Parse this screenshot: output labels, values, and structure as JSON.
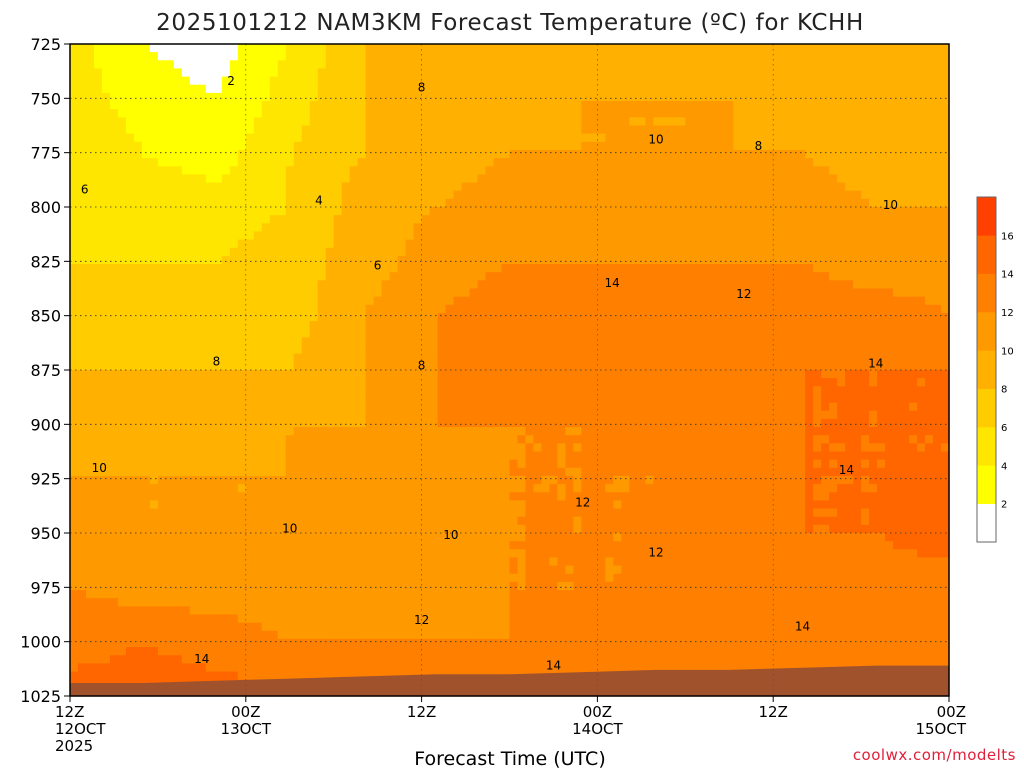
{
  "chart_data": {
    "type": "heatmap",
    "title": "2025101212 NAM3KM Forecast Temperature (ºC) for KCHH",
    "xlabel": "Forecast Time (UTC)",
    "ylabel": "",
    "credit": "coolwx.com/modelts",
    "y_ticks": [
      725,
      750,
      775,
      800,
      825,
      850,
      875,
      900,
      925,
      950,
      975,
      1000,
      1025
    ],
    "ylim": [
      725,
      1025
    ],
    "xlim_hours": [
      0,
      60
    ],
    "x_ticks": [
      {
        "hour": 0,
        "line1": "12Z",
        "line2": "12OCT",
        "line3": "2025"
      },
      {
        "hour": 12,
        "line1": "00Z",
        "line2": "13OCT",
        "line3": ""
      },
      {
        "hour": 24,
        "line1": "12Z",
        "line2": "",
        "line3": ""
      },
      {
        "hour": 36,
        "line1": "00Z",
        "line2": "14OCT",
        "line3": ""
      },
      {
        "hour": 48,
        "line1": "12Z",
        "line2": "",
        "line3": ""
      },
      {
        "hour": 60,
        "line1": "00Z",
        "line2": "15OCT",
        "line3": ""
      }
    ],
    "colorbar": {
      "ticks": [
        "2",
        "4",
        "6",
        "8",
        "10",
        "12",
        "14",
        "16"
      ],
      "levels": [
        0,
        2,
        4,
        6,
        8,
        10,
        12,
        14,
        16,
        18
      ],
      "colors": [
        "#ffffff",
        "#ffff00",
        "#ffe600",
        "#ffcc00",
        "#ffb000",
        "#ff9900",
        "#ff8000",
        "#ff6600",
        "#ff4000"
      ]
    },
    "ground_color": "#a0522d",
    "surface_pressure_hpa": [
      1019,
      1019,
      1018,
      1017,
      1016,
      1015,
      1015,
      1014,
      1013,
      1013,
      1012,
      1011,
      1011
    ],
    "surface_hours": [
      0,
      5,
      10,
      15,
      20,
      25,
      30,
      35,
      40,
      45,
      50,
      55,
      60
    ],
    "grid": true,
    "grid_pressures": [
      725,
      750,
      775,
      800,
      825,
      850,
      875,
      900,
      925,
      950,
      975,
      1000
    ],
    "temperature_grid": {
      "hours": [
        0,
        5,
        10,
        15,
        20,
        25,
        30,
        35,
        40,
        45,
        50,
        55,
        60
      ],
      "pressures": [
        725,
        750,
        775,
        800,
        825,
        850,
        875,
        900,
        925,
        950,
        975,
        1000,
        1025
      ],
      "values": [
        [
          5,
          2,
          1,
          4,
          8,
          8,
          8,
          9,
          9,
          9,
          8,
          9,
          9
        ],
        [
          5,
          3,
          2,
          5,
          8,
          9,
          9,
          10,
          10,
          10,
          9,
          9,
          9
        ],
        [
          6,
          4,
          3,
          6,
          8,
          9,
          10,
          10,
          10,
          10,
          10,
          9,
          9
        ],
        [
          6,
          5,
          5,
          6,
          9,
          10,
          11,
          11,
          11,
          11,
          11,
          10,
          10
        ],
        [
          6,
          6,
          6,
          7,
          9,
          11,
          12,
          12,
          12,
          12,
          12,
          11,
          11
        ],
        [
          7,
          7,
          7,
          7,
          10,
          12,
          13,
          14,
          12,
          13,
          13,
          13,
          12
        ],
        [
          8,
          8,
          8,
          8,
          10,
          12,
          13,
          13,
          12,
          13,
          14,
          14,
          14
        ],
        [
          9,
          9,
          9,
          10,
          10,
          12,
          12,
          12,
          13,
          13,
          14,
          14,
          14
        ],
        [
          10,
          10,
          10,
          10,
          11,
          11,
          12,
          12,
          12,
          13,
          14,
          14,
          14
        ],
        [
          11,
          10,
          10,
          10,
          10,
          11,
          12,
          12,
          12,
          13,
          14,
          14,
          15
        ],
        [
          12,
          11,
          11,
          11,
          11,
          11,
          12,
          12,
          12,
          13,
          13,
          13,
          13
        ],
        [
          13,
          14,
          13,
          12,
          12,
          12,
          12,
          13,
          13,
          13,
          13,
          13,
          13
        ],
        [
          15,
          15,
          15,
          14,
          14,
          14,
          14,
          14,
          14,
          14,
          14,
          14,
          14
        ]
      ]
    },
    "contour_labels": [
      {
        "text": "2",
        "hour": 11,
        "p": 742
      },
      {
        "text": "8",
        "hour": 24,
        "p": 745
      },
      {
        "text": "10",
        "hour": 40,
        "p": 769
      },
      {
        "text": "8",
        "hour": 47,
        "p": 772
      },
      {
        "text": "6",
        "hour": 1,
        "p": 792
      },
      {
        "text": "4",
        "hour": 17,
        "p": 797
      },
      {
        "text": "10",
        "hour": 56,
        "p": 799
      },
      {
        "text": "6",
        "hour": 21,
        "p": 827
      },
      {
        "text": "14",
        "hour": 37,
        "p": 835
      },
      {
        "text": "12",
        "hour": 46,
        "p": 840
      },
      {
        "text": "8",
        "hour": 10,
        "p": 871
      },
      {
        "text": "8",
        "hour": 24,
        "p": 873
      },
      {
        "text": "14",
        "hour": 55,
        "p": 872
      },
      {
        "text": "10",
        "hour": 2,
        "p": 920
      },
      {
        "text": "14",
        "hour": 53,
        "p": 921
      },
      {
        "text": "12",
        "hour": 35,
        "p": 936
      },
      {
        "text": "10",
        "hour": 15,
        "p": 948
      },
      {
        "text": "10",
        "hour": 26,
        "p": 951
      },
      {
        "text": "12",
        "hour": 40,
        "p": 959
      },
      {
        "text": "12",
        "hour": 24,
        "p": 990
      },
      {
        "text": "14",
        "hour": 50,
        "p": 993
      },
      {
        "text": "14",
        "hour": 9,
        "p": 1008
      },
      {
        "text": "14",
        "hour": 33,
        "p": 1011
      }
    ]
  }
}
